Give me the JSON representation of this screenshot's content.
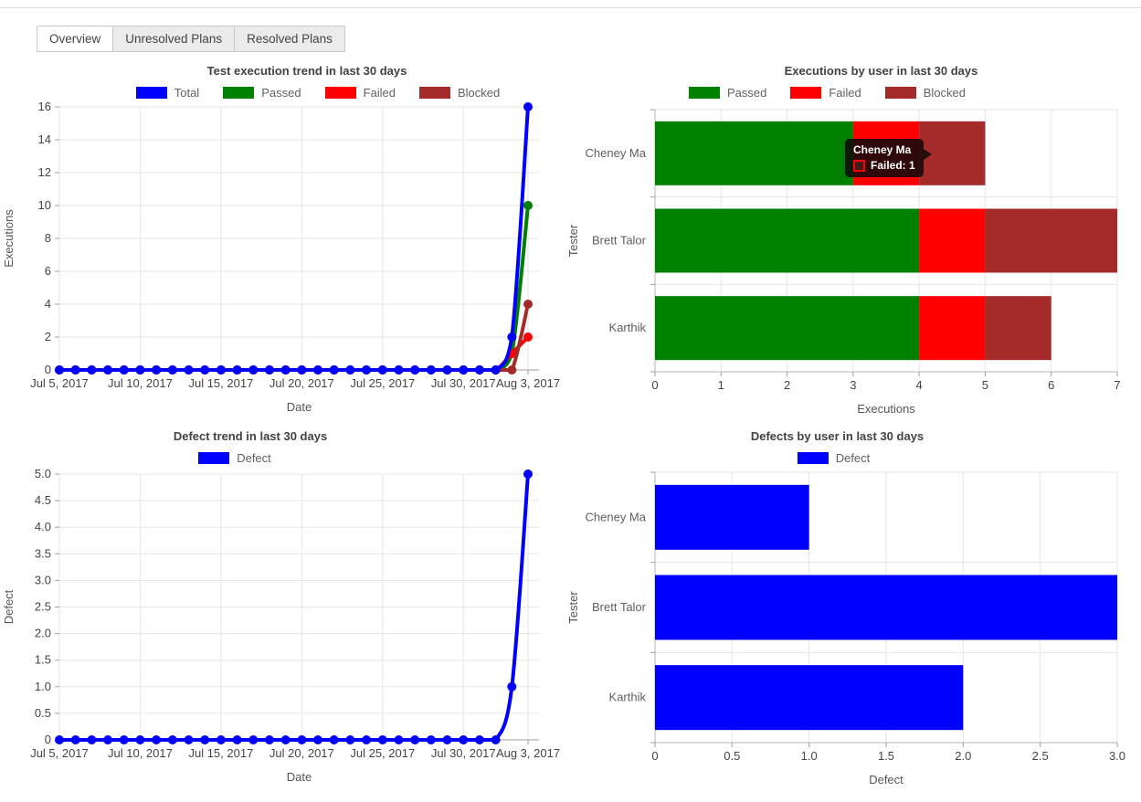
{
  "tabs": [
    {
      "label": "Overview",
      "active": true
    },
    {
      "label": "Unresolved Plans",
      "active": false
    },
    {
      "label": "Resolved Plans",
      "active": false
    }
  ],
  "colors": {
    "total": "#0000ff",
    "passed": "#008000",
    "failed": "#ff0000",
    "blocked": "#a52a2a",
    "defect": "#0000ff",
    "axis_text": "#444444",
    "grid": "#e6e6e6"
  },
  "chart_data": [
    {
      "id": "execution-trend",
      "type": "line",
      "title": "Test execution trend in last 30 days",
      "xlabel": "Date",
      "ylabel": "Executions",
      "legend_position": "top",
      "grid": true,
      "ylim": [
        0,
        16
      ],
      "y_tick_values": [
        0,
        2,
        4,
        6,
        8,
        10,
        12,
        14,
        16
      ],
      "y_tick_labels": [
        "0",
        "2",
        "4",
        "6",
        "8",
        "10",
        "12",
        "14",
        "16"
      ],
      "x": [
        "Jul 5, 2017",
        "Jul 6, 2017",
        "Jul 7, 2017",
        "Jul 8, 2017",
        "Jul 9, 2017",
        "Jul 10, 2017",
        "Jul 11, 2017",
        "Jul 12, 2017",
        "Jul 13, 2017",
        "Jul 14, 2017",
        "Jul 15, 2017",
        "Jul 16, 2017",
        "Jul 17, 2017",
        "Jul 18, 2017",
        "Jul 19, 2017",
        "Jul 20, 2017",
        "Jul 21, 2017",
        "Jul 22, 2017",
        "Jul 23, 2017",
        "Jul 24, 2017",
        "Jul 25, 2017",
        "Jul 26, 2017",
        "Jul 27, 2017",
        "Jul 28, 2017",
        "Jul 29, 2017",
        "Jul 30, 2017",
        "Jul 31, 2017",
        "Aug 1, 2017",
        "Aug 2, 2017",
        "Aug 3, 2017"
      ],
      "x_tick_indices": [
        0,
        5,
        10,
        15,
        20,
        25,
        29
      ],
      "x_tick_labels": [
        "Jul 5, 2017",
        "Jul 10, 2017",
        "Jul 15, 2017",
        "Jul 20, 2017",
        "Jul 25, 2017",
        "Jul 30, 2017",
        "Aug 3, 2017"
      ],
      "series": [
        {
          "name": "Total",
          "color": "#0000ff",
          "values": [
            0,
            0,
            0,
            0,
            0,
            0,
            0,
            0,
            0,
            0,
            0,
            0,
            0,
            0,
            0,
            0,
            0,
            0,
            0,
            0,
            0,
            0,
            0,
            0,
            0,
            0,
            0,
            0,
            2,
            16
          ]
        },
        {
          "name": "Passed",
          "color": "#008000",
          "values": [
            0,
            0,
            0,
            0,
            0,
            0,
            0,
            0,
            0,
            0,
            0,
            0,
            0,
            0,
            0,
            0,
            0,
            0,
            0,
            0,
            0,
            0,
            0,
            0,
            0,
            0,
            0,
            0,
            1,
            10
          ]
        },
        {
          "name": "Failed",
          "color": "#ff0000",
          "values": [
            0,
            0,
            0,
            0,
            0,
            0,
            0,
            0,
            0,
            0,
            0,
            0,
            0,
            0,
            0,
            0,
            0,
            0,
            0,
            0,
            0,
            0,
            0,
            0,
            0,
            0,
            0,
            0,
            1,
            2
          ]
        },
        {
          "name": "Blocked",
          "color": "#a52a2a",
          "values": [
            0,
            0,
            0,
            0,
            0,
            0,
            0,
            0,
            0,
            0,
            0,
            0,
            0,
            0,
            0,
            0,
            0,
            0,
            0,
            0,
            0,
            0,
            0,
            0,
            0,
            0,
            0,
            0,
            0,
            4
          ]
        }
      ]
    },
    {
      "id": "executions-by-user",
      "type": "stacked_bar_h",
      "title": "Executions by user in last 30 days",
      "xlabel": "Executions",
      "ylabel": "Tester",
      "legend_position": "top",
      "grid": true,
      "categories": [
        "Cheney Ma",
        "Brett Talor",
        "Karthik"
      ],
      "xlim": [
        0,
        7
      ],
      "x_tick_values": [
        0,
        1,
        2,
        3,
        4,
        5,
        6,
        7
      ],
      "x_tick_labels": [
        "0",
        "1",
        "2",
        "3",
        "4",
        "5",
        "6",
        "7"
      ],
      "series": [
        {
          "name": "Passed",
          "color": "#008000",
          "values": [
            3,
            4,
            4
          ]
        },
        {
          "name": "Failed",
          "color": "#ff0000",
          "values": [
            1,
            1,
            1
          ]
        },
        {
          "name": "Blocked",
          "color": "#a52a2a",
          "values": [
            1,
            2,
            1
          ]
        }
      ],
      "totals": [
        5,
        7,
        6
      ],
      "tooltip": {
        "title": "Cheney Ma",
        "series": "Failed",
        "value": 1,
        "entry_label": "Failed: 1",
        "color": "#ff0000"
      }
    },
    {
      "id": "defect-trend",
      "type": "line",
      "title": "Defect trend in last 30 days",
      "xlabel": "Date",
      "ylabel": "Defect",
      "legend_position": "top",
      "grid": true,
      "ylim": [
        0,
        5
      ],
      "y_tick_values": [
        0,
        0.5,
        1,
        1.5,
        2,
        2.5,
        3,
        3.5,
        4,
        4.5,
        5
      ],
      "y_tick_labels": [
        "0",
        "0.5",
        "1.0",
        "1.5",
        "2.0",
        "2.5",
        "3.0",
        "3.5",
        "4.0",
        "4.5",
        "5.0"
      ],
      "x": [
        "Jul 5, 2017",
        "Jul 6, 2017",
        "Jul 7, 2017",
        "Jul 8, 2017",
        "Jul 9, 2017",
        "Jul 10, 2017",
        "Jul 11, 2017",
        "Jul 12, 2017",
        "Jul 13, 2017",
        "Jul 14, 2017",
        "Jul 15, 2017",
        "Jul 16, 2017",
        "Jul 17, 2017",
        "Jul 18, 2017",
        "Jul 19, 2017",
        "Jul 20, 2017",
        "Jul 21, 2017",
        "Jul 22, 2017",
        "Jul 23, 2017",
        "Jul 24, 2017",
        "Jul 25, 2017",
        "Jul 26, 2017",
        "Jul 27, 2017",
        "Jul 28, 2017",
        "Jul 29, 2017",
        "Jul 30, 2017",
        "Jul 31, 2017",
        "Aug 1, 2017",
        "Aug 2, 2017",
        "Aug 3, 2017"
      ],
      "x_tick_indices": [
        0,
        5,
        10,
        15,
        20,
        25,
        29
      ],
      "x_tick_labels": [
        "Jul 5, 2017",
        "Jul 10, 2017",
        "Jul 15, 2017",
        "Jul 20, 2017",
        "Jul 25, 2017",
        "Jul 30, 2017",
        "Aug 3, 2017"
      ],
      "series": [
        {
          "name": "Defect",
          "color": "#0000ff",
          "values": [
            0,
            0,
            0,
            0,
            0,
            0,
            0,
            0,
            0,
            0,
            0,
            0,
            0,
            0,
            0,
            0,
            0,
            0,
            0,
            0,
            0,
            0,
            0,
            0,
            0,
            0,
            0,
            0,
            1,
            5
          ]
        }
      ]
    },
    {
      "id": "defects-by-user",
      "type": "bar_h",
      "title": "Defects by user in last 30 days",
      "xlabel": "Defect",
      "ylabel": "Tester",
      "legend_position": "top",
      "grid": true,
      "categories": [
        "Cheney Ma",
        "Brett Talor",
        "Karthik"
      ],
      "xlim": [
        0,
        3
      ],
      "x_tick_values": [
        0,
        0.5,
        1,
        1.5,
        2,
        2.5,
        3
      ],
      "x_tick_labels": [
        "0",
        "0.5",
        "1.0",
        "1.5",
        "2.0",
        "2.5",
        "3.0"
      ],
      "series": [
        {
          "name": "Defect",
          "color": "#0000ff",
          "values": [
            1,
            3,
            2
          ]
        }
      ]
    }
  ]
}
